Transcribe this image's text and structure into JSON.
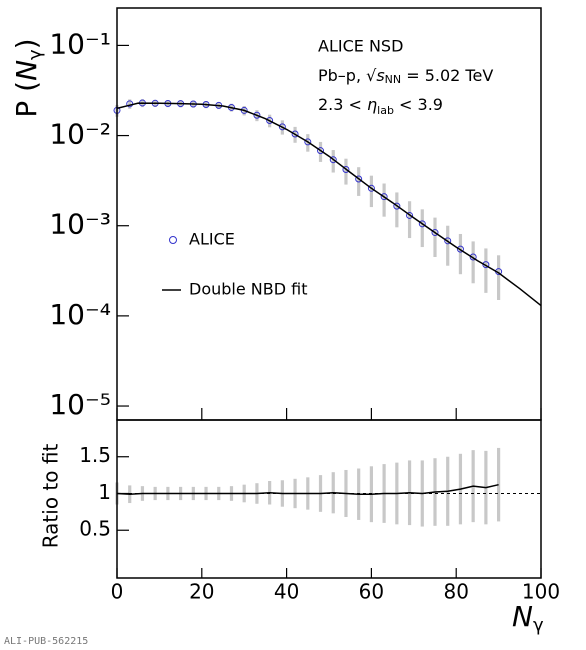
{
  "chart_data": [
    {
      "type": "log-line",
      "y_label": {
        "prefix": "P (",
        "symbol": "N",
        "sub": "γ",
        "suffix": ")"
      },
      "annotations": {
        "line1": "ALICE NSD",
        "line2": {
          "prefix": "Pb–p, √",
          "symbol": "s",
          "sub": "NN",
          "suffix": " = 5.02 TeV"
        },
        "line3": {
          "prefix": "2.3 < ",
          "symbol": "η",
          "sub": "lab",
          "suffix": " < 3.9"
        }
      },
      "xlim": [
        0,
        100
      ],
      "xticks": [
        0,
        20,
        40,
        60,
        80,
        100
      ],
      "ylim": [
        7e-06,
        0.26
      ],
      "yscale": "log",
      "yticks": [
        {
          "value": 1e-05,
          "label": "10⁻⁵"
        },
        {
          "value": 0.0001,
          "label": "10⁻⁴"
        },
        {
          "value": 0.001,
          "label": "10⁻³"
        },
        {
          "value": 0.01,
          "label": "10⁻²"
        },
        {
          "value": 0.1,
          "label": "10⁻¹"
        }
      ],
      "band_color": "#c8c8c8",
      "series": [
        {
          "name": "ALICE",
          "type": "scatter",
          "color": "#3333cc",
          "x": [
            0,
            3,
            6,
            9,
            12,
            15,
            18,
            21,
            24,
            27,
            30,
            33,
            36,
            39,
            42,
            45,
            48,
            51,
            54,
            57,
            60,
            63,
            66,
            69,
            72,
            75,
            78,
            81,
            84,
            87,
            90
          ],
          "values": [
            0.019,
            0.0225,
            0.023,
            0.0228,
            0.0227,
            0.0226,
            0.0224,
            0.0221,
            0.0216,
            0.0205,
            0.019,
            0.0168,
            0.0147,
            0.0125,
            0.0104,
            0.0085,
            0.0068,
            0.0054,
            0.0042,
            0.0033,
            0.0026,
            0.0021,
            0.00165,
            0.0013,
            0.00105,
            0.00084,
            0.00068,
            0.00055,
            0.00045,
            0.00037,
            0.00031
          ],
          "errors": [
            0.00285,
            0.0027,
            0.0023,
            0.00205,
            0.00204,
            0.00203,
            0.00202,
            0.00199,
            0.00194,
            0.00205,
            0.00228,
            0.00235,
            0.00235,
            0.00225,
            0.00208,
            0.00187,
            0.0017,
            0.00151,
            0.00134,
            0.00116,
            0.00099,
            0.00084,
            0.00069,
            0.00057,
            0.00047,
            0.00039,
            0.00032,
            0.00026,
            0.00022,
            0.00019,
            0.00016
          ]
        },
        {
          "name": "Double NBD fit",
          "type": "line",
          "color": "#000000",
          "x": [
            0,
            5,
            10,
            15,
            20,
            25,
            30,
            35,
            40,
            45,
            50,
            55,
            60,
            65,
            70,
            75,
            80,
            85,
            90,
            95,
            100
          ],
          "values": [
            0.02,
            0.0229,
            0.0228,
            0.0226,
            0.0222,
            0.0213,
            0.019,
            0.0154,
            0.0117,
            0.0085,
            0.0059,
            0.0039,
            0.0026,
            0.0018,
            0.00122,
            0.00084,
            0.00058,
            0.00041,
            0.0003,
            0.0002,
            0.00013
          ]
        }
      ]
    },
    {
      "type": "line",
      "y_label": "Ratio to fit",
      "x_label": {
        "symbol": "N",
        "sub": "γ"
      },
      "xlim": [
        0,
        100
      ],
      "xticks": [
        0,
        20,
        40,
        60,
        80,
        100
      ],
      "ylim": [
        -0.15,
        2.0
      ],
      "yticks": [
        0.5,
        1,
        1.5
      ],
      "reference_line": 1,
      "band_color": "#c8c8c8",
      "series": [
        {
          "name": "Ratio to fit",
          "color": "#000000",
          "x": [
            0,
            3,
            6,
            9,
            12,
            15,
            18,
            21,
            24,
            27,
            30,
            33,
            36,
            39,
            42,
            45,
            48,
            51,
            54,
            57,
            60,
            63,
            66,
            69,
            72,
            75,
            78,
            81,
            84,
            87,
            90
          ],
          "values": [
            1.0,
            0.99,
            1.0,
            1.0,
            1.0,
            1.0,
            1.0,
            1.0,
            1.0,
            1.0,
            1.0,
            1.0,
            1.01,
            1.0,
            1.0,
            1.0,
            1.0,
            1.01,
            1.0,
            0.99,
            0.99,
            1.0,
            1.0,
            1.01,
            1.0,
            1.02,
            1.03,
            1.06,
            1.1,
            1.08,
            1.12
          ],
          "errors": [
            0.15,
            0.12,
            0.1,
            0.09,
            0.09,
            0.09,
            0.09,
            0.09,
            0.09,
            0.1,
            0.12,
            0.14,
            0.16,
            0.18,
            0.2,
            0.22,
            0.25,
            0.28,
            0.32,
            0.35,
            0.38,
            0.4,
            0.42,
            0.44,
            0.45,
            0.46,
            0.47,
            0.48,
            0.49,
            0.5,
            0.5
          ]
        }
      ]
    },
    {
      "type": "footer",
      "text": "ALI-PUB-562215"
    }
  ]
}
